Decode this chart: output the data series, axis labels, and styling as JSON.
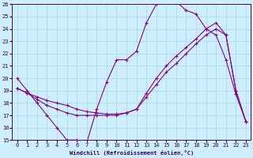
{
  "xlabel": "Windchill (Refroidissement éolien,°C)",
  "xlim": [
    -0.5,
    23.5
  ],
  "ylim": [
    15,
    26
  ],
  "yticks": [
    15,
    16,
    17,
    18,
    19,
    20,
    21,
    22,
    23,
    24,
    25,
    26
  ],
  "xticks": [
    0,
    1,
    2,
    3,
    4,
    5,
    6,
    7,
    8,
    9,
    10,
    11,
    12,
    13,
    14,
    15,
    16,
    17,
    18,
    19,
    20,
    21,
    22,
    23
  ],
  "background_color": "#cceeff",
  "grid_color": "#aadddd",
  "line_color": "#880088",
  "line1_x": [
    0,
    1,
    2,
    3,
    4,
    5,
    6,
    7,
    8,
    9,
    10,
    11,
    12,
    13,
    14,
    15,
    16,
    17,
    18,
    19,
    20,
    21,
    22,
    23
  ],
  "line1_y": [
    20.0,
    19.0,
    18.0,
    17.0,
    16.0,
    15.0,
    15.0,
    14.8,
    17.5,
    19.7,
    21.5,
    21.5,
    22.2,
    24.5,
    26.0,
    26.3,
    26.2,
    25.5,
    25.2,
    24.0,
    23.5,
    21.5,
    18.7,
    16.5
  ],
  "line2_x": [
    0,
    1,
    2,
    3,
    4,
    5,
    6,
    7,
    8,
    9,
    10,
    11,
    12,
    13,
    14,
    15,
    16,
    17,
    18,
    19,
    20,
    21,
    22,
    23
  ],
  "line2_y": [
    19.2,
    18.8,
    18.5,
    18.2,
    18.0,
    17.8,
    17.5,
    17.3,
    17.2,
    17.1,
    17.1,
    17.2,
    17.5,
    18.5,
    19.5,
    20.5,
    21.2,
    22.0,
    22.8,
    23.5,
    24.0,
    23.5,
    19.0,
    16.5
  ],
  "line3_x": [
    0,
    1,
    2,
    3,
    4,
    5,
    6,
    7,
    8,
    9,
    10,
    11,
    12,
    13,
    14,
    15,
    16,
    17,
    18,
    19,
    20,
    21,
    22,
    23
  ],
  "line3_y": [
    19.2,
    18.8,
    18.3,
    17.8,
    17.5,
    17.2,
    17.0,
    17.0,
    17.0,
    17.0,
    17.0,
    17.2,
    17.5,
    18.8,
    20.0,
    21.0,
    21.8,
    22.5,
    23.2,
    24.0,
    24.5,
    23.5,
    19.0,
    16.5
  ]
}
